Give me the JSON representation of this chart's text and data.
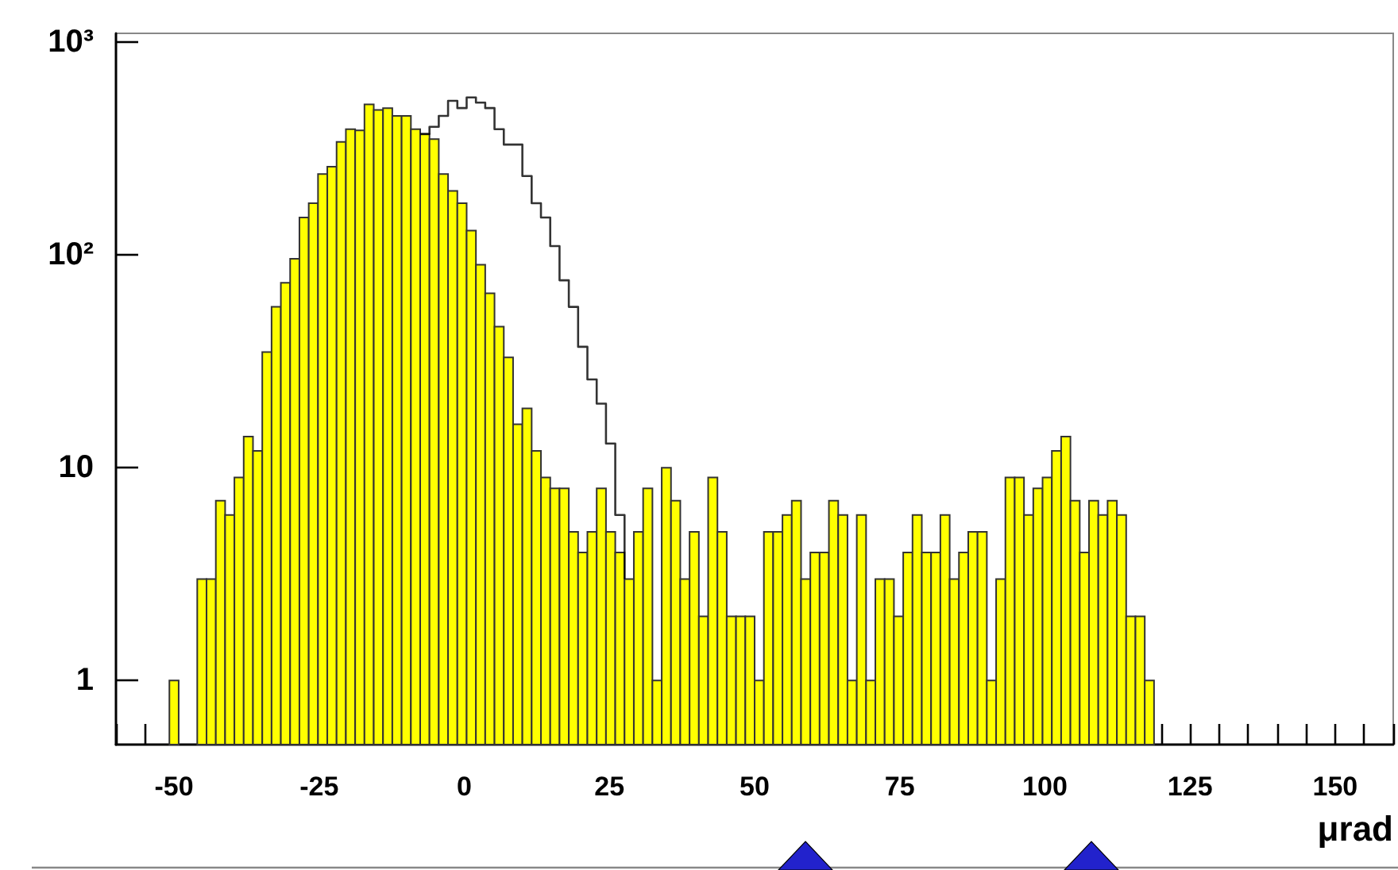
{
  "chart_data": {
    "type": "histogram",
    "xlabel": "μrad",
    "bins": [
      -50.8,
      -49.2,
      -47.6,
      -46,
      -44.4,
      -42.8,
      -41.2,
      -39.6,
      -38,
      -36.4,
      -34.8,
      -33.2,
      -31.6,
      -30,
      -28.4,
      -26.8,
      -25.2,
      -23.6,
      -22,
      -20.4,
      -18.8,
      -17.2,
      -15.6,
      -14,
      -12.4,
      -10.8,
      -9.2,
      -7.6,
      -6,
      -4.4,
      -2.8,
      -1.2,
      0.4,
      2,
      3.6,
      5.2,
      6.8,
      8.4,
      10,
      11.6,
      13.2,
      14.8,
      16.4,
      18,
      19.6,
      21.2,
      22.8,
      24.4,
      26,
      27.6,
      29.2,
      30.8,
      32.4,
      34,
      35.6,
      37.2,
      38.8,
      40.4,
      42,
      43.6,
      45.2,
      46.8,
      48.4,
      50,
      51.6,
      53.2,
      54.8,
      56.4,
      58,
      59.6,
      61.2,
      62.8,
      64.4,
      66,
      67.6,
      69.2,
      70.8,
      72.4,
      74,
      75.6,
      77.2,
      78.8,
      80.4,
      82,
      83.6,
      85.2,
      86.8,
      88.4,
      90,
      91.6,
      93.2,
      94.8,
      96.4,
      98,
      99.6,
      101.2,
      102.8,
      104.4,
      106,
      107.6,
      109.2,
      110.8,
      112.4,
      114,
      115.6,
      117.2,
      118.8
    ],
    "series": [
      {
        "color": "#ffff00",
        "values": [
          1,
          null,
          null,
          3,
          3,
          7,
          6,
          9,
          14,
          12,
          35,
          57,
          74,
          96,
          150,
          175,
          240,
          260,
          340,
          390,
          385,
          510,
          480,
          490,
          450,
          450,
          390,
          370,
          350,
          240,
          200,
          175,
          130,
          90,
          66,
          46,
          33,
          16,
          19,
          12,
          9,
          8,
          8,
          5,
          4,
          5,
          8,
          5,
          4,
          3,
          5,
          8,
          1,
          10,
          7,
          3,
          5,
          2,
          9,
          5,
          2,
          2,
          2,
          1,
          5,
          5,
          6,
          7,
          3,
          4,
          4,
          7,
          6,
          1,
          6,
          1,
          3,
          3,
          2,
          4,
          6,
          4,
          4,
          6,
          3,
          4,
          5,
          5,
          1,
          3,
          9,
          9,
          6,
          8,
          9,
          12,
          14,
          7,
          4,
          7,
          6,
          7,
          6,
          2,
          2,
          1
        ]
      },
      {
        "type": "step",
        "color": "#000000",
        "x": [
          -7.6,
          -6,
          -4.4,
          -2.8,
          -1.2,
          0.4,
          2,
          3.6,
          5.2,
          6.8,
          8.4,
          10,
          11.6,
          13.2,
          14.8,
          16.4,
          18,
          19.6,
          21.2,
          22.8,
          24.4,
          26,
          27.6
        ],
        "values": [
          370,
          400,
          450,
          530,
          490,
          550,
          520,
          490,
          390,
          330,
          330,
          235,
          175,
          150,
          110,
          76,
          57,
          37,
          26,
          20,
          13,
          6,
          3
        ]
      }
    ],
    "xlim": [
      -60,
      160
    ],
    "xticks": [
      -50,
      -25,
      0,
      25,
      50,
      75,
      100,
      125,
      150
    ],
    "ylim": [
      0.5,
      1100
    ],
    "yticks": [
      1,
      10,
      {
        "value": 100,
        "label": "10²"
      },
      {
        "value": 1000,
        "label": "10³"
      }
    ],
    "log": "y",
    "grid": false
  }
}
